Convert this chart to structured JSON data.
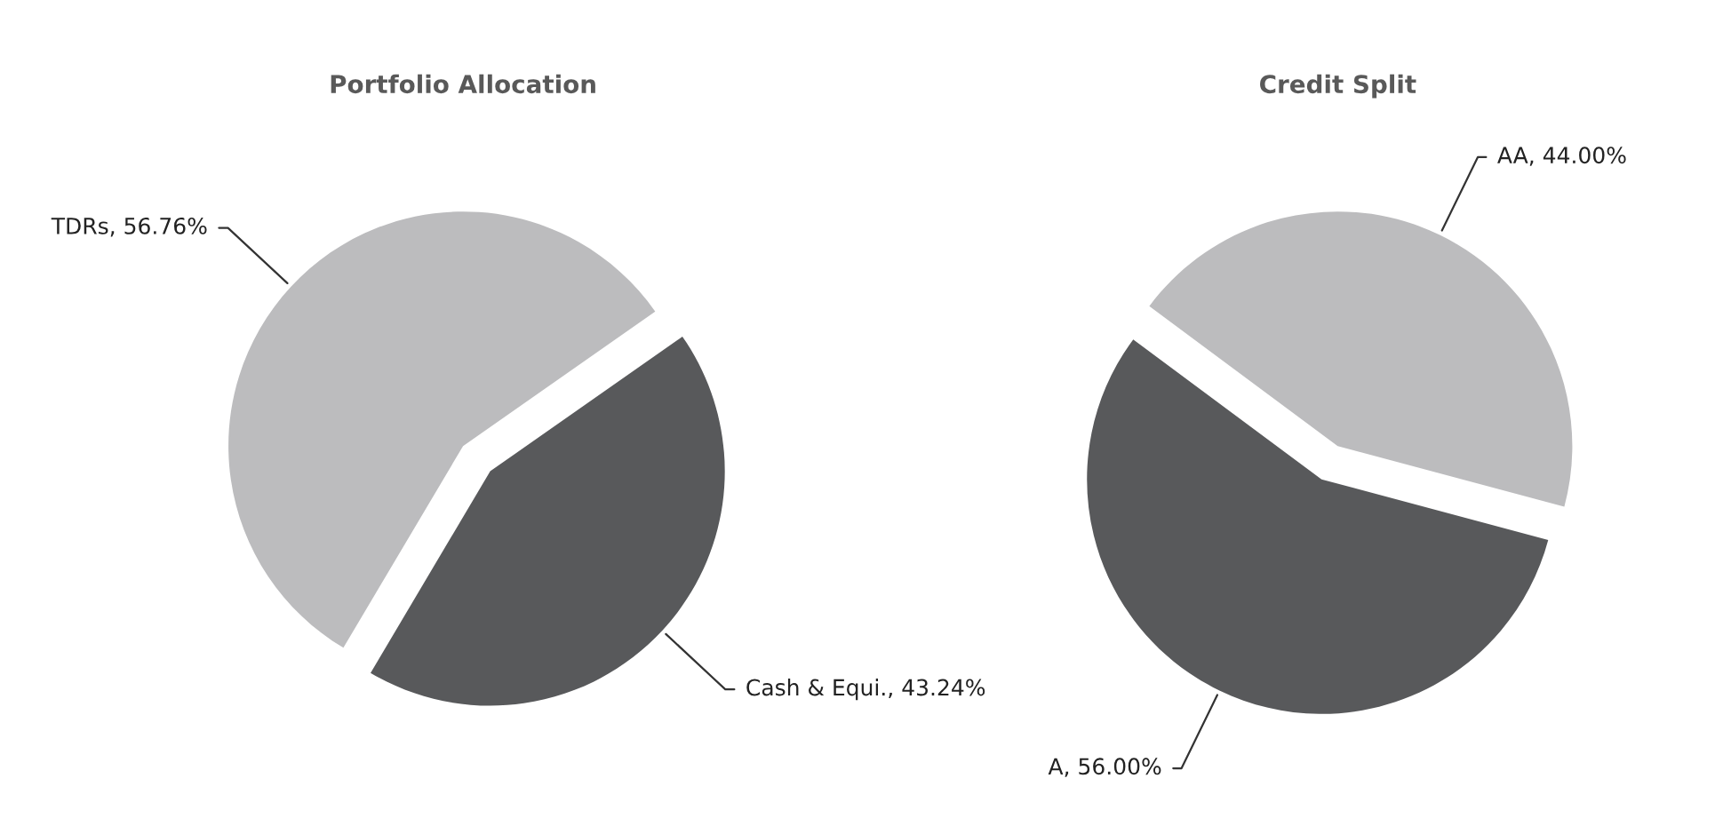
{
  "chart_data": [
    {
      "type": "pie",
      "title": "Portfolio Allocation",
      "categories": [
        "TDRs",
        "Cash & Equi."
      ],
      "values": [
        56.76,
        43.24
      ],
      "colors": [
        "#bcbcbe",
        "#58595b"
      ],
      "value_labels": [
        "56.76%",
        "43.24%"
      ]
    },
    {
      "type": "pie",
      "title": "Credit Split",
      "categories": [
        "AA",
        "A"
      ],
      "values": [
        44.0,
        56.0
      ],
      "colors": [
        "#bcbcbe",
        "#58595b"
      ],
      "value_labels": [
        "44.00%",
        "56.00%"
      ]
    }
  ]
}
